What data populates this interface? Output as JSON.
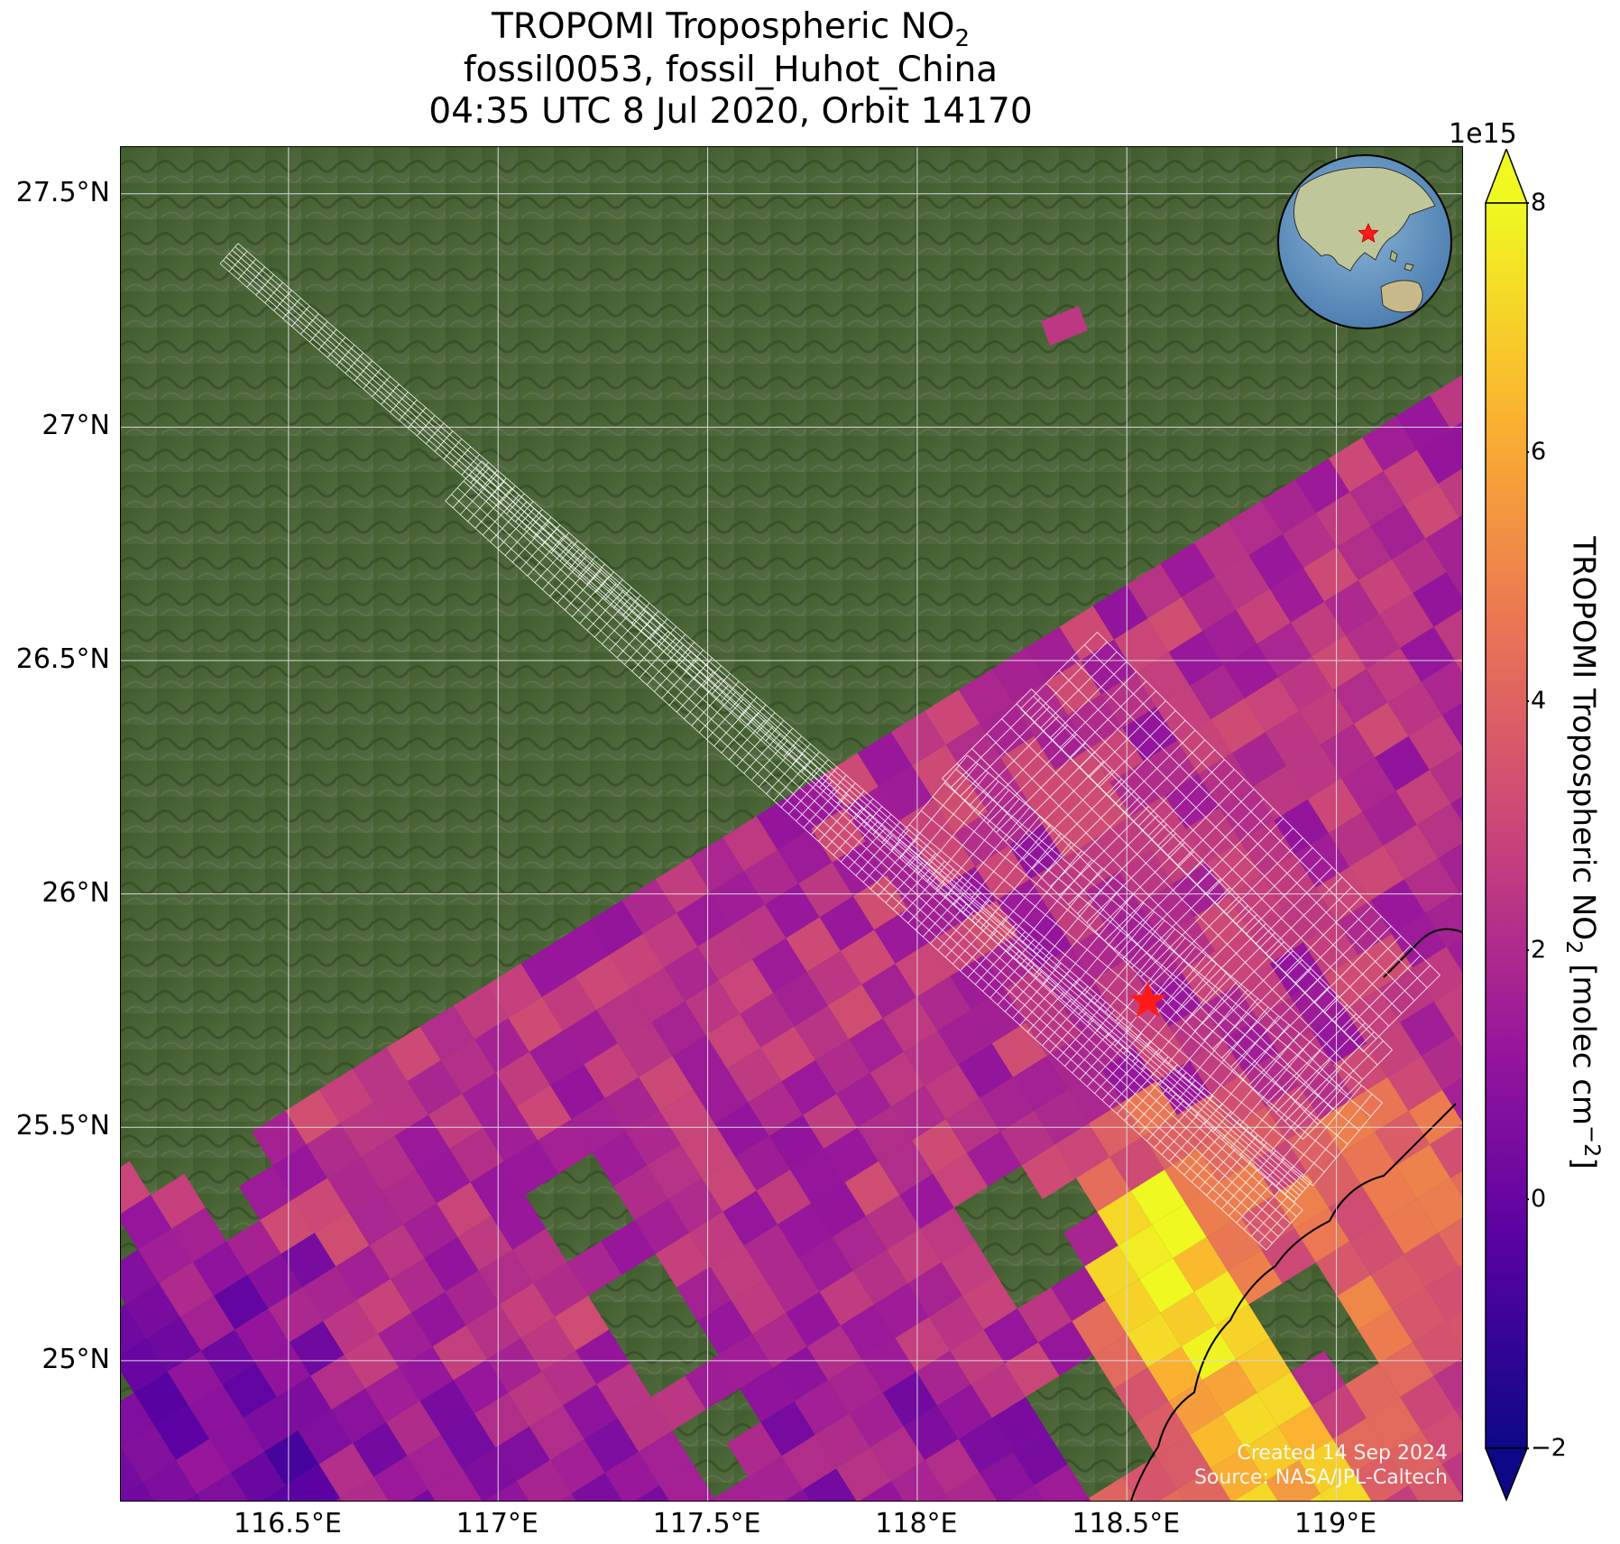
{
  "title": {
    "line1_prefix": "TROPOMI Tropospheric NO",
    "line1_sub": "2",
    "line2": "fossil0053, fossil_Huhot_China",
    "line3": "04:35 UTC 8 Jul 2020, Orbit 14170"
  },
  "map": {
    "lon_range": [
      116.1,
      119.3
    ],
    "lat_range": [
      24.7,
      27.6
    ],
    "lat_ticks": [
      "27.5°N",
      "27°N",
      "26.5°N",
      "26°N",
      "25.5°N",
      "25°N"
    ],
    "lat_values": [
      27.5,
      27.0,
      26.5,
      26.0,
      25.5,
      25.0
    ],
    "lon_ticks": [
      "116.5°E",
      "117°E",
      "117.5°E",
      "118°E",
      "118.5°E",
      "119°E"
    ],
    "lon_values": [
      116.5,
      117.0,
      117.5,
      118.0,
      118.5,
      119.0
    ],
    "grid": true,
    "basemap": "satellite imagery",
    "target_marker": {
      "lon": 118.55,
      "lat": 25.77,
      "symbol": "red-star"
    },
    "credit_line1": "Created 14 Sep 2024",
    "credit_line2": "Source: NASA/JPL-Caltech"
  },
  "colorbar": {
    "range": [
      -2.0,
      8.0
    ],
    "extend": "both",
    "ticks": [
      "−2",
      "0",
      "2",
      "4",
      "6",
      "8"
    ],
    "tick_values": [
      -2,
      0,
      2,
      4,
      6,
      8
    ],
    "exponent": "1e15",
    "label_prefix": "TROPOMI Tropospheric NO",
    "label_sub": "2",
    "label_units": " [molec cm",
    "label_sup": "−2",
    "label_end": "]",
    "colormap": "plasma"
  },
  "colors": {
    "cmap": [
      "#0d0887",
      "#5b02a3",
      "#9a179b",
      "#cb4678",
      "#eb7852",
      "#fbb32f",
      "#eff821"
    ],
    "grid": "#d8d8d8",
    "swath": "#ffffff",
    "marker": "#ff1a1a"
  }
}
